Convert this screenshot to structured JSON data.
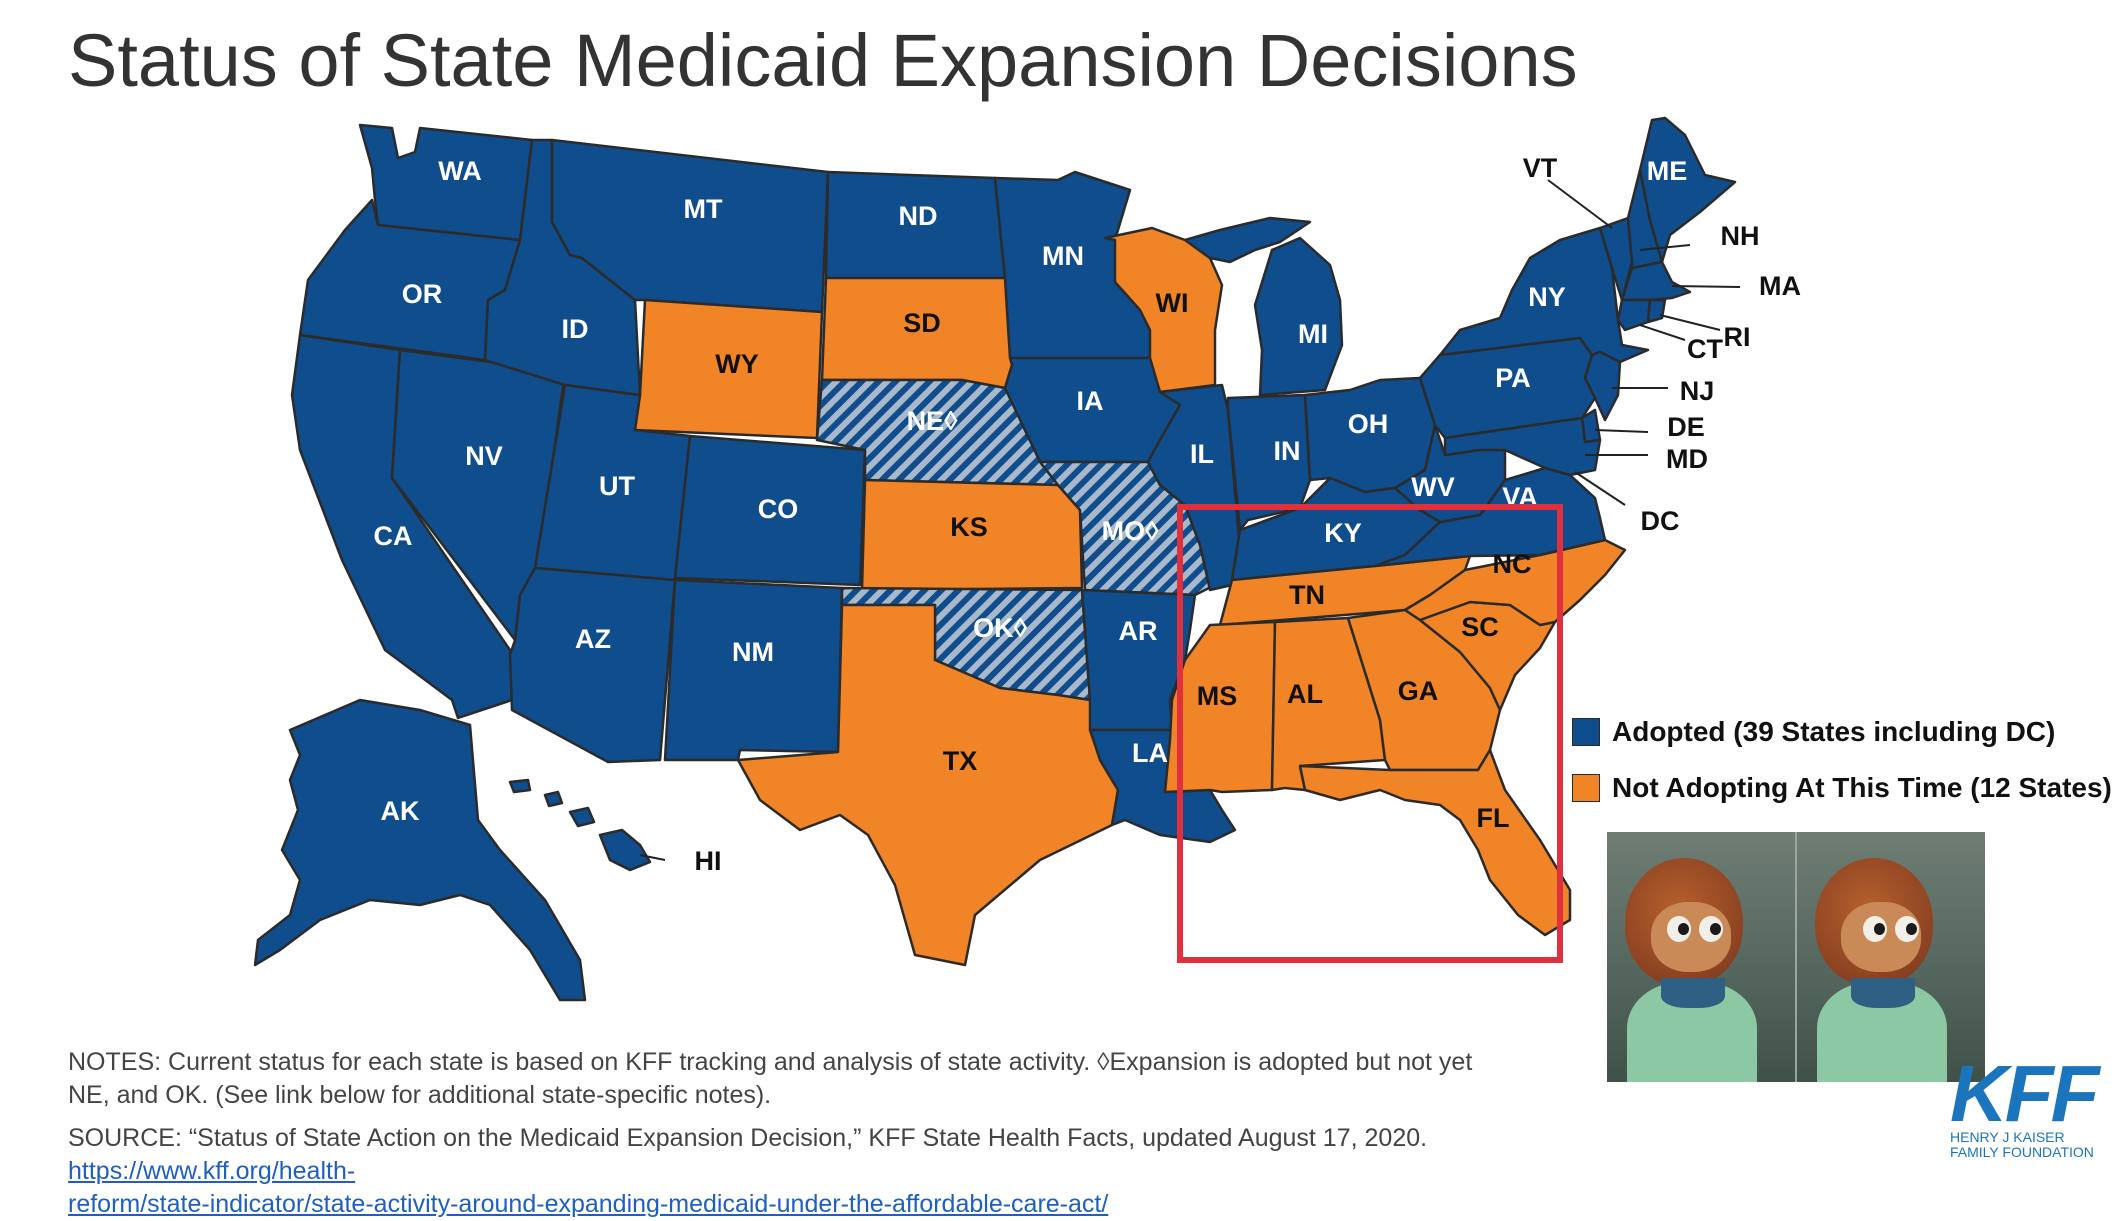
{
  "title": "Status of State Medicaid Expansion Decisions",
  "colors": {
    "adopted": "#0f4d8c",
    "not_adopting": "#f18427",
    "adopted_not_implemented_hatch": "#a9b9cc",
    "highlight_box": "#e0303e",
    "link": "#1f5fbf"
  },
  "legend": {
    "adopted": "Adopted (39 States including DC)",
    "not_adopting": "Not Adopting At This Time (12 States)"
  },
  "states": {
    "WA": {
      "label": "WA",
      "status": "adopted"
    },
    "OR": {
      "label": "OR",
      "status": "adopted"
    },
    "CA": {
      "label": "CA",
      "status": "adopted"
    },
    "NV": {
      "label": "NV",
      "status": "adopted"
    },
    "ID": {
      "label": "ID",
      "status": "adopted"
    },
    "MT": {
      "label": "MT",
      "status": "adopted"
    },
    "WY": {
      "label": "WY",
      "status": "not_adopting"
    },
    "UT": {
      "label": "UT",
      "status": "adopted"
    },
    "CO": {
      "label": "CO",
      "status": "adopted"
    },
    "AZ": {
      "label": "AZ",
      "status": "adopted"
    },
    "NM": {
      "label": "NM",
      "status": "adopted"
    },
    "ND": {
      "label": "ND",
      "status": "adopted"
    },
    "SD": {
      "label": "SD",
      "status": "not_adopting"
    },
    "NE": {
      "label": "NE◊",
      "status": "adopted_not_implemented"
    },
    "KS": {
      "label": "KS",
      "status": "not_adopting"
    },
    "OK": {
      "label": "OK◊",
      "status": "adopted_not_implemented"
    },
    "TX": {
      "label": "TX",
      "status": "not_adopting"
    },
    "MN": {
      "label": "MN",
      "status": "adopted"
    },
    "IA": {
      "label": "IA",
      "status": "adopted"
    },
    "MO": {
      "label": "MO◊",
      "status": "adopted_not_implemented"
    },
    "AR": {
      "label": "AR",
      "status": "adopted"
    },
    "LA": {
      "label": "LA",
      "status": "adopted"
    },
    "WI": {
      "label": "WI",
      "status": "not_adopting"
    },
    "IL": {
      "label": "IL",
      "status": "adopted"
    },
    "MI": {
      "label": "MI",
      "status": "adopted"
    },
    "IN": {
      "label": "IN",
      "status": "adopted"
    },
    "OH": {
      "label": "OH",
      "status": "adopted"
    },
    "KY": {
      "label": "KY",
      "status": "adopted"
    },
    "TN": {
      "label": "TN",
      "status": "not_adopting"
    },
    "MS": {
      "label": "MS",
      "status": "not_adopting"
    },
    "AL": {
      "label": "AL",
      "status": "not_adopting"
    },
    "GA": {
      "label": "GA",
      "status": "not_adopting"
    },
    "FL": {
      "label": "FL",
      "status": "not_adopting"
    },
    "SC": {
      "label": "SC",
      "status": "not_adopting"
    },
    "NC": {
      "label": "NC",
      "status": "not_adopting"
    },
    "VA": {
      "label": "VA",
      "status": "adopted"
    },
    "WV": {
      "label": "WV",
      "status": "adopted"
    },
    "PA": {
      "label": "PA",
      "status": "adopted"
    },
    "NY": {
      "label": "NY",
      "status": "adopted"
    },
    "ME": {
      "label": "ME",
      "status": "adopted"
    },
    "VT": {
      "label": "VT",
      "status": "adopted"
    },
    "NH": {
      "label": "NH",
      "status": "adopted"
    },
    "MA": {
      "label": "MA",
      "status": "adopted"
    },
    "RI": {
      "label": "RI",
      "status": "adopted"
    },
    "CT": {
      "label": "CT",
      "status": "adopted"
    },
    "NJ": {
      "label": "NJ",
      "status": "adopted"
    },
    "DE": {
      "label": "DE",
      "status": "adopted"
    },
    "MD": {
      "label": "MD",
      "status": "adopted"
    },
    "DC": {
      "label": "DC",
      "status": "adopted"
    },
    "AK": {
      "label": "AK",
      "status": "adopted"
    },
    "HI": {
      "label": "HI",
      "status": "adopted"
    }
  },
  "notes": {
    "line1": "NOTES: Current status for each state is based on KFF tracking and analysis of state activity. ◊Expansion is adopted but not yet",
    "line2": "NE, and OK. (See link below for additional state-specific notes).",
    "source_prefix": "SOURCE: “Status of State Action on the Medicaid Expansion Decision,” KFF State Health Facts, updated August 17, 2020. ",
    "source_link_part1": "https://www.kff.org/health-",
    "source_link_part2": "reform/state-indicator/state-activity-around-expanding-medicaid-under-the-affordable-care-act/"
  },
  "logo": {
    "mark": "KFF",
    "line1": "HENRY J KAISER",
    "line2": "FAMILY FOUNDATION"
  },
  "meme": {
    "icon": "side-eye-puppet-meme"
  }
}
